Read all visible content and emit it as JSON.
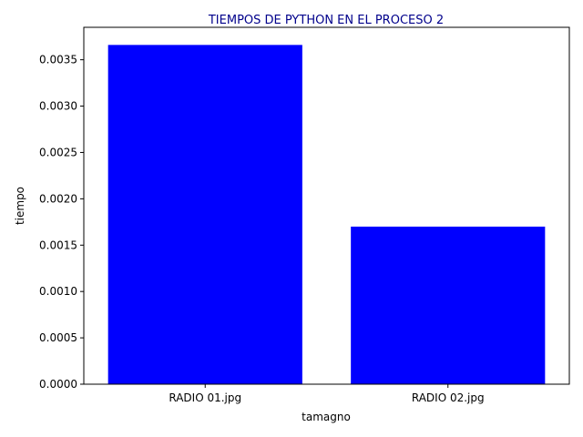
{
  "chart_data": {
    "type": "bar",
    "title": "TIEMPOS DE PYTHON EN EL PROCESO 2",
    "xlabel": "tamagno",
    "ylabel": "tiempo",
    "categories": [
      "RADIO 01.jpg",
      "RADIO 02.jpg"
    ],
    "values": [
      0.00366,
      0.0017
    ],
    "ylim": [
      0,
      0.00385
    ],
    "yticks": [
      0.0,
      0.0005,
      0.001,
      0.0015,
      0.002,
      0.0025,
      0.003,
      0.0035
    ],
    "ytick_labels": [
      "0.0000",
      "0.0005",
      "0.0010",
      "0.0015",
      "0.0020",
      "0.0025",
      "0.0030",
      "0.0035"
    ],
    "grid": false,
    "bar_color": "#0000ff",
    "title_color": "#00008b"
  }
}
